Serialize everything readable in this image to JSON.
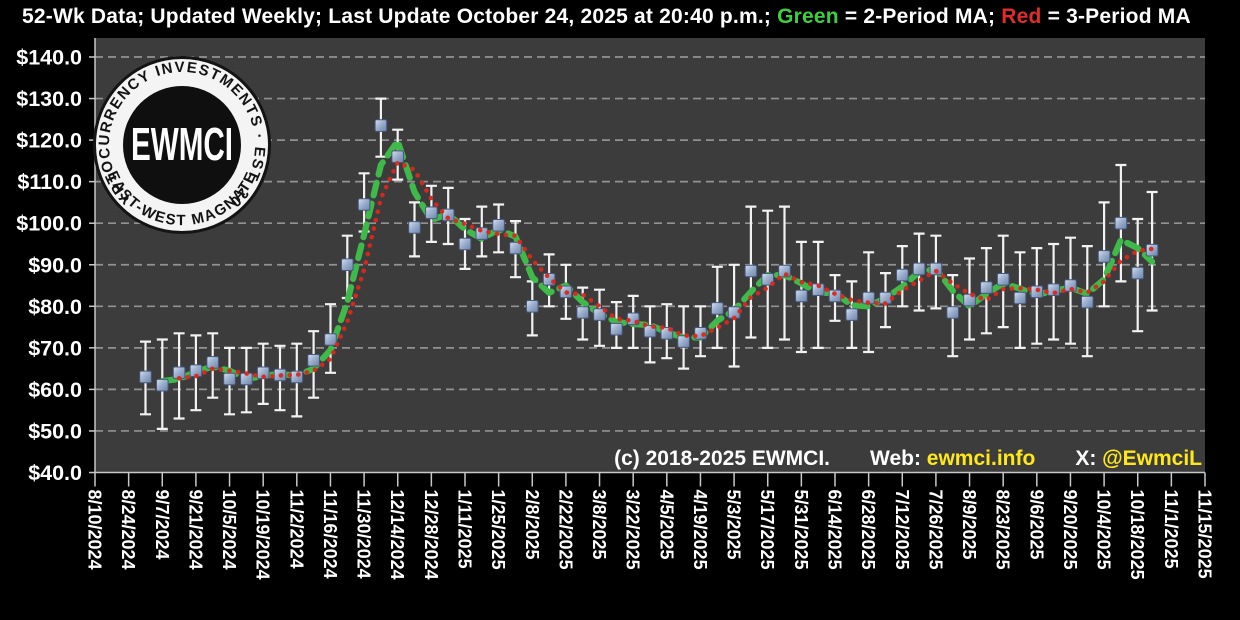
{
  "title": {
    "part1": "52-Wk Data; Updated Weekly; Last Update October 24, 2025 at 20:40 p.m.; ",
    "green_label": "Green",
    "part2": " = 2-Period MA; ",
    "red_label": "Red",
    "part3": " = 3-Period MA"
  },
  "logo": {
    "ring_top": "CRYPTOCURRENCY INVESTMENTS · EST. 2018",
    "ring_bottom": "· EAST-WEST MAGNATE ·",
    "center": "EWMCI"
  },
  "footer": {
    "copyright": "(c) 2018-2025 EWMCI.",
    "web_label": "Web: ",
    "web_value": "ewmci.info",
    "x_label": "X: ",
    "x_value": "@EwmciL"
  },
  "colors": {
    "background": "#000000",
    "plot_background": "#3c3c3c",
    "gridline": "#929292",
    "axis_line": "#c8c8c8",
    "axis_text": "#ffffff",
    "whisker": "#f2f2f2",
    "marker_light": "#d7e0ef",
    "marker_mid": "#9db0cf",
    "marker_dark": "#6e83a8",
    "marker_stroke": "#46597e",
    "green_ma": "#3fb94a",
    "red_ma": "#d9271f",
    "title_green": "#3ecf3e",
    "title_red": "#e32b2b",
    "accent_yellow": "#ffe81a"
  },
  "chart_data": {
    "type": "line",
    "title": "52-Wk Data; Updated Weekly; Last Update October 24, 2025 at 20:40 p.m.",
    "legend": [
      {
        "label": "Green = 2-Period MA",
        "window": 2,
        "color_key": "green_ma"
      },
      {
        "label": "Red = 3-Period MA",
        "window": 3,
        "color_key": "red_ma"
      }
    ],
    "grid": "horizontal-dashed",
    "x_axis": {
      "start": "8/10/2024",
      "tick_interval_weeks": 2,
      "tick_labels": [
        "8/10/2024",
        "8/24/2024",
        "9/7/2024",
        "9/21/2024",
        "10/5/2024",
        "10/19/2024",
        "11/2/2024",
        "11/16/2024",
        "11/30/2024",
        "12/14/2024",
        "12/28/2024",
        "1/11/2025",
        "1/25/2025",
        "2/8/2025",
        "2/22/2025",
        "3/8/2025",
        "3/22/2025",
        "4/5/2025",
        "4/19/2025",
        "5/3/2025",
        "5/17/2025",
        "5/31/2025",
        "6/14/2025",
        "6/28/2025",
        "7/12/2025",
        "7/26/2025",
        "8/9/2025",
        "8/23/2025",
        "9/6/2025",
        "9/20/2025",
        "10/4/2025",
        "10/18/2025",
        "11/1/2025",
        "11/15/2025"
      ]
    },
    "y_axis": {
      "min": 40,
      "max": 140,
      "step": 10,
      "tick_labels": [
        "$140.0",
        "$130.0",
        "$120.0",
        "$110.0",
        "$100.0",
        "$90.0",
        "$80.0",
        "$70.0",
        "$60.0",
        "$50.0",
        "$40.0"
      ]
    },
    "series": {
      "name": "Weekly index value with high-low range",
      "dates": [
        "8/31/2024",
        "9/7/2024",
        "9/14/2024",
        "9/21/2024",
        "9/28/2024",
        "10/5/2024",
        "10/12/2024",
        "10/19/2024",
        "10/26/2024",
        "11/2/2024",
        "11/9/2024",
        "11/16/2024",
        "11/23/2024",
        "11/30/2024",
        "12/7/2024",
        "12/14/2024",
        "12/21/2024",
        "12/28/2024",
        "1/4/2025",
        "1/11/2025",
        "1/18/2025",
        "1/25/2025",
        "2/1/2025",
        "2/8/2025",
        "2/15/2025",
        "2/22/2025",
        "3/1/2025",
        "3/8/2025",
        "3/15/2025",
        "3/22/2025",
        "3/29/2025",
        "4/5/2025",
        "4/12/2025",
        "4/19/2025",
        "4/26/2025",
        "5/3/2025",
        "5/10/2025",
        "5/17/2025",
        "5/24/2025",
        "5/31/2025",
        "6/7/2025",
        "6/14/2025",
        "6/21/2025",
        "6/28/2025",
        "7/5/2025",
        "7/12/2025",
        "7/19/2025",
        "7/26/2025",
        "8/2/2025",
        "8/9/2025",
        "8/16/2025",
        "8/23/2025",
        "8/30/2025",
        "9/6/2025",
        "9/13/2025",
        "9/20/2025",
        "9/27/2025",
        "10/4/2025",
        "10/11/2025",
        "10/18/2025",
        "10/24/2025"
      ],
      "values": [
        63,
        61,
        64,
        64.5,
        66.5,
        62.5,
        62.5,
        64,
        63.5,
        63,
        67,
        72,
        90,
        104.5,
        123.5,
        116,
        99,
        102.5,
        102,
        95,
        97.5,
        99.5,
        94,
        80,
        86.5,
        83.5,
        78.5,
        78,
        74.5,
        77,
        74,
        73.5,
        71.5,
        73.5,
        79.5,
        78.5,
        88.5,
        86.5,
        88.5,
        82.5,
        84,
        82.5,
        78,
        82,
        82,
        87.5,
        89,
        89,
        78.5,
        81.5,
        84.5,
        86.5,
        82,
        83.5,
        84,
        85,
        81,
        92,
        100,
        88,
        93.5
      ],
      "range_high": [
        71.5,
        72,
        73.5,
        73,
        73.5,
        70,
        70,
        71,
        70.5,
        71,
        74,
        80.5,
        97,
        112,
        130,
        122.5,
        105,
        109,
        108.5,
        101,
        104,
        104.5,
        100.5,
        86,
        92.5,
        90,
        84.5,
        84,
        81,
        82.5,
        80,
        80.5,
        80,
        80,
        89.5,
        90,
        104,
        103,
        104,
        95.5,
        95.5,
        87.5,
        86,
        93,
        88,
        94.5,
        97.5,
        97,
        87.5,
        91.5,
        94,
        97,
        93,
        94,
        95,
        96.5,
        94.5,
        105,
        114,
        101,
        107.5
      ],
      "range_low": [
        54,
        50.5,
        53,
        55,
        58,
        54,
        54.5,
        56.5,
        55,
        53.5,
        58,
        64,
        82,
        98,
        116,
        110.5,
        92,
        95.5,
        95,
        89,
        92,
        93,
        87,
        73,
        80,
        77,
        72,
        70.5,
        70,
        70,
        66.5,
        67.5,
        65,
        68,
        70,
        65.5,
        72.5,
        70,
        72,
        69,
        70,
        76.5,
        70,
        69,
        75,
        80,
        79,
        79.5,
        68,
        72,
        73.5,
        75,
        70,
        71,
        72,
        71,
        68,
        80,
        86,
        74,
        79
      ]
    }
  }
}
